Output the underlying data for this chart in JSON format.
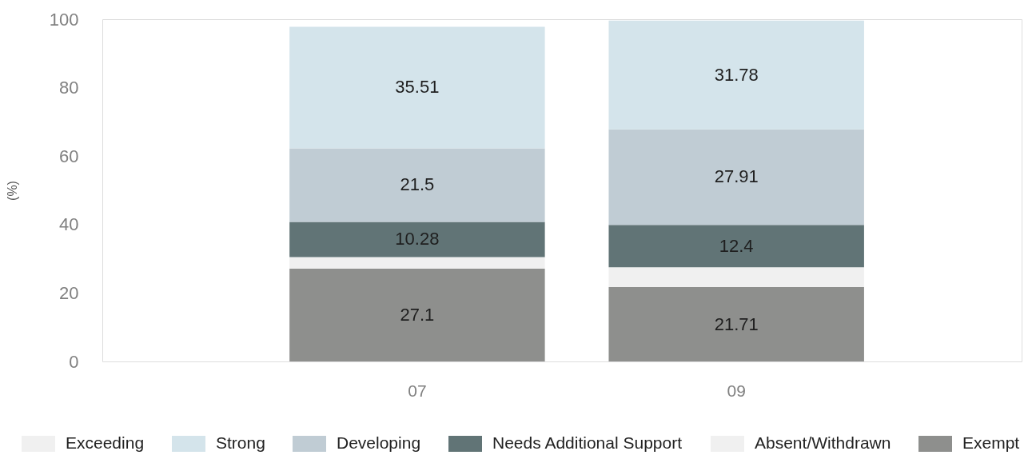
{
  "chart_data": {
    "type": "bar",
    "stacked": true,
    "ylabel": "(%)",
    "categories": [
      "07",
      "09"
    ],
    "series": [
      {
        "name": "Exempt",
        "color": "#8e8f8d",
        "values": [
          27.1,
          21.71
        ],
        "value_labels": [
          "27.1",
          "21.71"
        ]
      },
      {
        "name": "Absent/Withdrawn",
        "color": "#f0f0f0",
        "values": [
          3.4,
          5.8
        ]
      },
      {
        "name": "Needs Additional Support",
        "color": "#617476",
        "values": [
          10.28,
          12.4
        ],
        "value_labels": [
          "10.28",
          "12.4"
        ]
      },
      {
        "name": "Developing",
        "color": "#c0ccd4",
        "values": [
          21.5,
          27.91
        ],
        "value_labels": [
          "21.5",
          "27.91"
        ]
      },
      {
        "name": "Strong",
        "color": "#d4e4eb",
        "values": [
          35.51,
          31.78
        ],
        "value_labels": [
          "35.51",
          "31.78"
        ]
      },
      {
        "name": "Exceeding",
        "color": "#f0f0f0",
        "values": [
          null,
          null
        ]
      }
    ],
    "ylim": [
      0,
      100
    ],
    "yticks": [
      0,
      20,
      40,
      60,
      80,
      100
    ],
    "grid": false,
    "legend": "bottom"
  }
}
